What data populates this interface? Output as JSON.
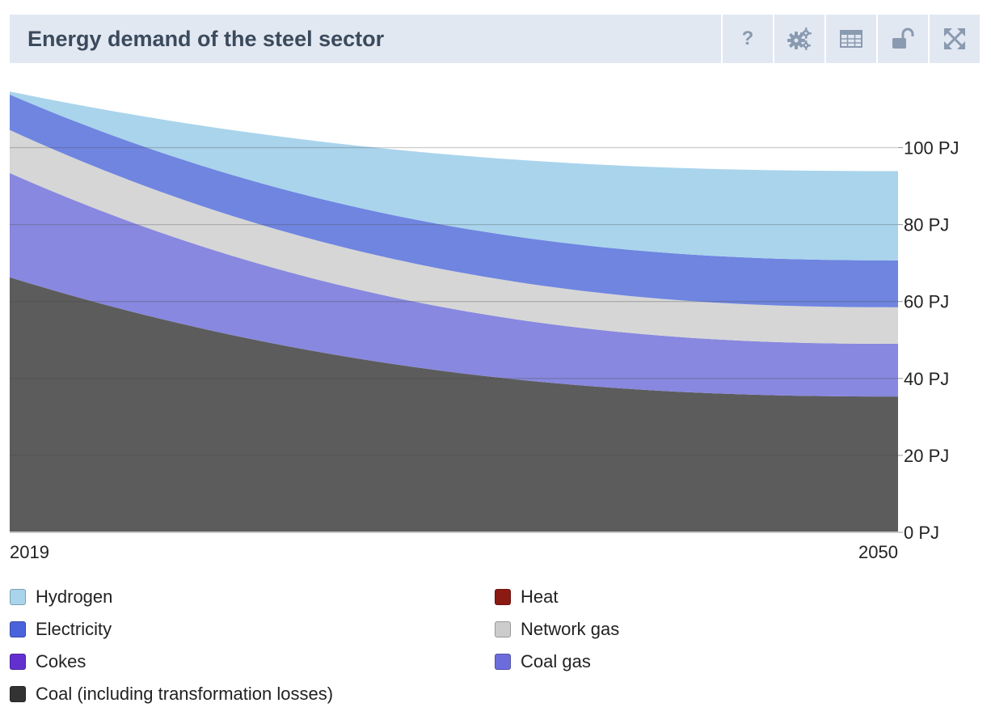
{
  "header": {
    "title": "Energy demand of the steel sector",
    "help_glyph": "?"
  },
  "toolbar": [
    {
      "name": "help-button",
      "icon": "question-icon"
    },
    {
      "name": "settings-button",
      "icon": "gears-icon"
    },
    {
      "name": "table-view-button",
      "icon": "table-icon"
    },
    {
      "name": "lock-button",
      "icon": "unlock-icon"
    },
    {
      "name": "fullscreen-button",
      "icon": "expand-icon"
    }
  ],
  "chart_data": {
    "type": "area",
    "stacked": true,
    "x": [
      2019,
      2050
    ],
    "x_tick_labels": [
      "2019",
      "2050"
    ],
    "ylim": [
      0,
      110
    ],
    "y_ticks": [
      0,
      20,
      40,
      60,
      80,
      100
    ],
    "y_tick_labels": [
      "0 PJ",
      "20 PJ",
      "40 PJ",
      "60 PJ",
      "80 PJ",
      "100 PJ"
    ],
    "y_axis_position": "right",
    "grid": true,
    "series": [
      {
        "name": "Coal (including transformation losses)",
        "color": "#5c5c5c",
        "values": [
          66.3,
          35.3
        ]
      },
      {
        "name": "Coal gas",
        "color": "#8888e0",
        "values": [
          27.1,
          13.7
        ]
      },
      {
        "name": "Network gas",
        "color": "#d6d6d6",
        "values": [
          11.2,
          9.5
        ]
      },
      {
        "name": "Electricity",
        "color": "#6f85e0",
        "values": [
          9.2,
          12.2
        ]
      },
      {
        "name": "Hydrogen",
        "color": "#a9d4ec",
        "values": [
          0.8,
          23.2
        ]
      }
    ],
    "legend": {
      "placement": "bottom",
      "items": [
        {
          "label": "Hydrogen",
          "color": "#a9d4ec"
        },
        {
          "label": "Heat",
          "color": "#8b1a12"
        },
        {
          "label": "Electricity",
          "color": "#4a63dc"
        },
        {
          "label": "Network gas",
          "color": "#cccccc"
        },
        {
          "label": "Cokes",
          "color": "#6330d0"
        },
        {
          "label": "Coal gas",
          "color": "#6c6cdc"
        },
        {
          "label": "Coal (including transformation losses)",
          "color": "#333333"
        }
      ]
    }
  }
}
